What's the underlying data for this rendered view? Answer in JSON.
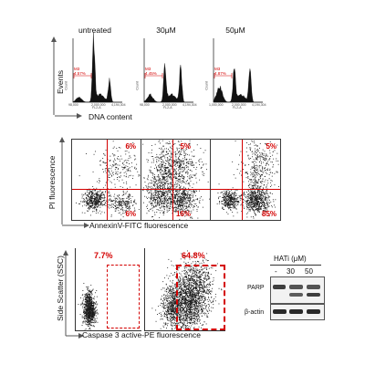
{
  "histograms": {
    "ylabel": "Events",
    "xlabel": "DNA content",
    "panels": [
      {
        "title": "untreated",
        "gate_text": "M3",
        "pct_text": "4.57%",
        "y_axis_label": "Count",
        "x_axis_label": "FL2-A",
        "tick_mid": "2,000,000",
        "tick_right": "4,194,304",
        "tick_left": "98,000"
      },
      {
        "title": "30μM",
        "gate_text": "M3",
        "pct_text": "4.45%",
        "y_axis_label": "Count",
        "x_axis_label": "FL2-A",
        "tick_mid": "2,000,000",
        "tick_right": "4,194,304",
        "tick_left": "98,000"
      },
      {
        "title": "50μM",
        "gate_text": "M3",
        "pct_text": "4.87%",
        "y_axis_label": "Count",
        "x_axis_label": "FL2-A",
        "tick_mid": "2,000,000",
        "tick_right": "4,194,304",
        "tick_left": "1,000,000"
      }
    ]
  },
  "annexin": {
    "ylabel": "PI fluorescence",
    "xlabel": "AnnexinV-FITC fluorescence",
    "panels": [
      {
        "upper_right": "6%",
        "lower_right": "6%"
      },
      {
        "upper_right": "5%",
        "lower_right": "16%"
      },
      {
        "upper_right": "5%",
        "lower_right": "85%"
      }
    ]
  },
  "caspase": {
    "ylabel": "Side Scatter (SSC)",
    "xlabel": "Caspase 3 active-PE fluorescence",
    "panels": [
      {
        "pct": "7.7%"
      },
      {
        "pct": "64.8%"
      }
    ]
  },
  "western": {
    "header": "HATi (μM)",
    "lanes": [
      "-",
      "30",
      "50"
    ],
    "rows": [
      "PARP",
      "β-actin"
    ]
  },
  "colors": {
    "gate": "#d40000",
    "dots": "#1a1a1a"
  }
}
